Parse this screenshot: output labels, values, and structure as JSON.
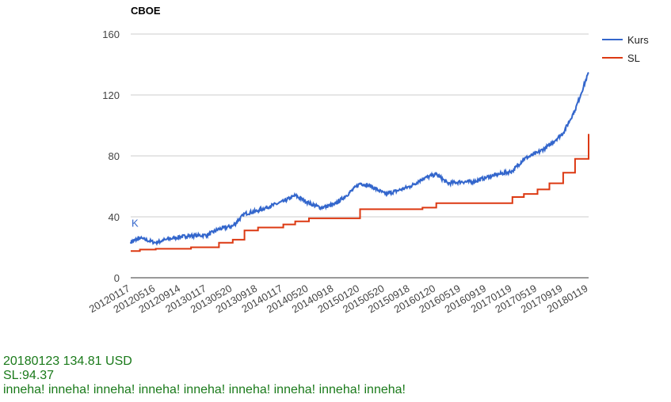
{
  "chart_data": {
    "type": "line",
    "title": "CBOE",
    "xlabel": "",
    "ylabel": "",
    "x_tick_labels": [
      "20120117",
      "20120516",
      "20120914",
      "20130117",
      "20130520",
      "20130918",
      "20140117",
      "20140520",
      "20140918",
      "20150120",
      "20150520",
      "20150918",
      "20160120",
      "20160519",
      "20160919",
      "20170119",
      "20170519",
      "20170919",
      "20180119"
    ],
    "y_ticks": [
      0,
      40,
      80,
      120,
      160
    ],
    "ylim": [
      0,
      160
    ],
    "grid": true,
    "legend_position": "right",
    "annotation": {
      "text": "K",
      "x": "20120117",
      "y": 34,
      "color": "#3366cc"
    },
    "series": [
      {
        "name": "Kurs",
        "color": "#3366cc",
        "x": [
          "20120117",
          "20120301",
          "20120516",
          "20120701",
          "20120914",
          "20121101",
          "20130117",
          "20130315",
          "20130520",
          "20130715",
          "20130918",
          "20131115",
          "20140117",
          "20140315",
          "20140520",
          "20140715",
          "20140918",
          "20141115",
          "20150120",
          "20150315",
          "20150520",
          "20150715",
          "20150918",
          "20151115",
          "20160120",
          "20160315",
          "20160519",
          "20160715",
          "20160919",
          "20161115",
          "20170119",
          "20170315",
          "20170519",
          "20170715",
          "20170919",
          "20171115",
          "20180119"
        ],
        "values": [
          23.5,
          26,
          23,
          25,
          27,
          27.5,
          28,
          32,
          34,
          42,
          44,
          47,
          50,
          54,
          49,
          46,
          48,
          54,
          62,
          60,
          55,
          57,
          60,
          65,
          68,
          62,
          63,
          63,
          66,
          68,
          70,
          78,
          82,
          87,
          95,
          110,
          134.81
        ]
      },
      {
        "name": "SL",
        "color": "#dc3912",
        "x": [
          "20120117",
          "20120301",
          "20120516",
          "20120701",
          "20120914",
          "20121101",
          "20130117",
          "20130315",
          "20130520",
          "20130715",
          "20130918",
          "20131115",
          "20140117",
          "20140315",
          "20140520",
          "20140715",
          "20140918",
          "20141115",
          "20150120",
          "20150315",
          "20150520",
          "20150715",
          "20150918",
          "20151115",
          "20160120",
          "20160315",
          "20160519",
          "20160715",
          "20160919",
          "20161115",
          "20170119",
          "20170315",
          "20170519",
          "20170715",
          "20170919",
          "20171115",
          "20180119"
        ],
        "values": [
          17.5,
          18.5,
          19,
          19,
          19,
          20,
          20,
          23,
          25,
          31,
          33,
          33,
          35,
          37,
          39,
          39,
          39,
          39,
          45,
          45,
          45,
          45,
          45,
          46,
          49,
          49,
          49,
          49,
          49,
          49,
          53,
          55,
          58,
          62,
          69,
          78,
          94.37
        ]
      }
    ]
  },
  "info": {
    "line1": "20180123 134.81 USD",
    "line2": "SL:94.37",
    "line3": "inneha! inneha! inneha! inneha! inneha! inneha! inneha! inneha! inneha!"
  }
}
